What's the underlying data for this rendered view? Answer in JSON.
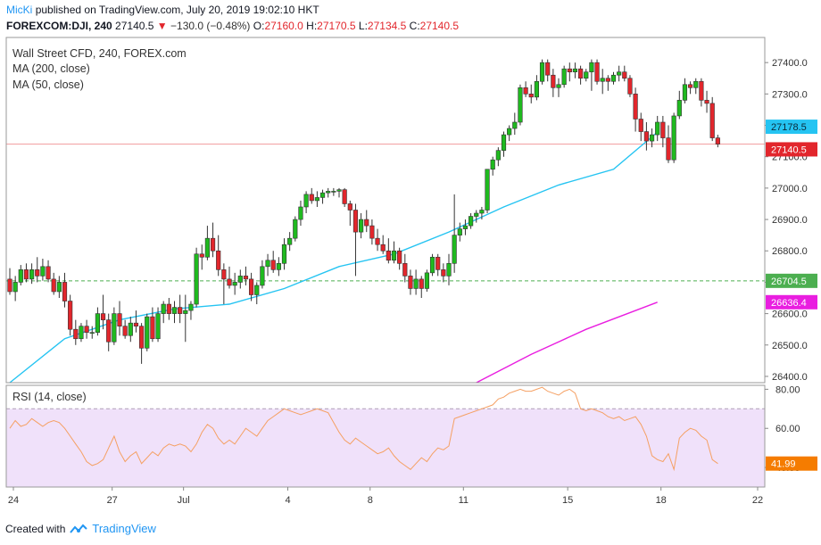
{
  "header": {
    "user": "MicKi",
    "published": "published on TradingView.com, July 20, 2019 19:02:10 HKT",
    "symbol": "FOREXCOM:DJI, 240",
    "last": "27140.5",
    "arrow": "▼",
    "change": "−130.0 (−0.48%)",
    "o_label": "O:",
    "o": "27160.0",
    "h_label": "H:",
    "h": "27170.5",
    "l_label": "L:",
    "l": "27134.5",
    "c_label": "C:",
    "c": "27140.5"
  },
  "legend": {
    "instrument": "Wall Street CFD, 240, FOREX.com",
    "ma200": "MA (200, close)",
    "ma50": "MA (50, close)",
    "rsi": "RSI (14, close)"
  },
  "footer": {
    "created_with": "Created with",
    "brand": "TradingView"
  },
  "colors": {
    "up": "#26a69a",
    "up_fill": "#1fba1f",
    "down": "#e2262c",
    "ma50": "#25c4f2",
    "ma200": "#e91ee0",
    "rsi_line": "#f5a063",
    "rsi_band": "#f0e1fa",
    "support": "#4caf50",
    "price_line": "#e2262c"
  },
  "chart_data": {
    "type": "candlestick",
    "x_ticks": [
      "24",
      "27",
      "Jul",
      "4",
      "8",
      "11",
      "15",
      "18",
      "22"
    ],
    "y_ticks": [
      "27400.0",
      "27300.0",
      "27200.0",
      "27100.0",
      "27000.0",
      "26900.0",
      "26800.0",
      "26700.0",
      "26600.0",
      "26500.0",
      "26400.0"
    ],
    "ylim": [
      26380,
      27480
    ],
    "labels": {
      "ma50_value": "27178.5",
      "last_price": "27140.5",
      "support_level": "26704.5",
      "ma200_value": "26636.4"
    },
    "support_level": 26704.5,
    "last_price": 27140.5,
    "candles": [
      [
        26710,
        26745,
        26660,
        26670
      ],
      [
        26670,
        26720,
        26640,
        26700
      ],
      [
        26700,
        26755,
        26690,
        26740
      ],
      [
        26740,
        26760,
        26700,
        26710
      ],
      [
        26710,
        26760,
        26695,
        26740
      ],
      [
        26740,
        26780,
        26700,
        26720
      ],
      [
        26720,
        26775,
        26705,
        26750
      ],
      [
        26750,
        26770,
        26700,
        26710
      ],
      [
        26710,
        26730,
        26660,
        26670
      ],
      [
        26670,
        26720,
        26650,
        26700
      ],
      [
        26700,
        26730,
        26620,
        26640
      ],
      [
        26640,
        26660,
        26530,
        26550
      ],
      [
        26550,
        26580,
        26500,
        26520
      ],
      [
        26520,
        26570,
        26510,
        26560
      ],
      [
        26560,
        26580,
        26520,
        26540
      ],
      [
        26540,
        26560,
        26520,
        26540
      ],
      [
        26540,
        26620,
        26530,
        26600
      ],
      [
        26600,
        26660,
        26550,
        26580
      ],
      [
        26580,
        26600,
        26480,
        26510
      ],
      [
        26510,
        26620,
        26500,
        26600
      ],
      [
        26600,
        26640,
        26530,
        26560
      ],
      [
        26560,
        26580,
        26520,
        26530
      ],
      [
        26530,
        26590,
        26510,
        26570
      ],
      [
        26570,
        26610,
        26540,
        26560
      ],
      [
        26560,
        26570,
        26440,
        26490
      ],
      [
        26490,
        26600,
        26480,
        26590
      ],
      [
        26590,
        26620,
        26510,
        26520
      ],
      [
        26520,
        26620,
        26510,
        26600
      ],
      [
        26600,
        26640,
        26570,
        26630
      ],
      [
        26630,
        26650,
        26580,
        26600
      ],
      [
        26600,
        26640,
        26570,
        26620
      ],
      [
        26620,
        26660,
        26570,
        26600
      ],
      [
        26600,
        26660,
        26510,
        26610
      ],
      [
        26610,
        26640,
        26580,
        26630
      ],
      [
        26630,
        26810,
        26620,
        26790
      ],
      [
        26790,
        26820,
        26740,
        26780
      ],
      [
        26780,
        26880,
        26770,
        26840
      ],
      [
        26840,
        26890,
        26780,
        26800
      ],
      [
        26800,
        26850,
        26720,
        26740
      ],
      [
        26740,
        26760,
        26630,
        26710
      ],
      [
        26710,
        26750,
        26680,
        26690
      ],
      [
        26690,
        26730,
        26660,
        26700
      ],
      [
        26700,
        26740,
        26680,
        26720
      ],
      [
        26720,
        26750,
        26690,
        26710
      ],
      [
        26710,
        26730,
        26640,
        26660
      ],
      [
        26660,
        26700,
        26630,
        26690
      ],
      [
        26690,
        26770,
        26680,
        26750
      ],
      [
        26750,
        26790,
        26720,
        26770
      ],
      [
        26770,
        26800,
        26730,
        26740
      ],
      [
        26740,
        26780,
        26720,
        26760
      ],
      [
        26760,
        26840,
        26740,
        26820
      ],
      [
        26820,
        26860,
        26800,
        26840
      ],
      [
        26840,
        26910,
        26830,
        26900
      ],
      [
        26900,
        26960,
        26880,
        26940
      ],
      [
        26940,
        26990,
        26920,
        26980
      ],
      [
        26980,
        27000,
        26950,
        26960
      ],
      [
        26960,
        26990,
        26940,
        26970
      ],
      [
        26970,
        26995,
        26950,
        26985
      ],
      [
        26985,
        27000,
        26970,
        26990
      ],
      [
        26990,
        27000,
        26975,
        26990
      ],
      [
        26990,
        27000,
        26970,
        26995
      ],
      [
        26995,
        27000,
        26940,
        26950
      ],
      [
        26950,
        26960,
        26880,
        26930
      ],
      [
        26930,
        26950,
        26720,
        26860
      ],
      [
        26860,
        26920,
        26840,
        26900
      ],
      [
        26900,
        26930,
        26860,
        26880
      ],
      [
        26880,
        26900,
        26820,
        26840
      ],
      [
        26840,
        26870,
        26800,
        26820
      ],
      [
        26820,
        26850,
        26790,
        26800
      ],
      [
        26800,
        26840,
        26760,
        26770
      ],
      [
        26770,
        26830,
        26760,
        26800
      ],
      [
        26800,
        26810,
        26740,
        26760
      ],
      [
        26760,
        26790,
        26700,
        26720
      ],
      [
        26720,
        26740,
        26660,
        26680
      ],
      [
        26680,
        26740,
        26660,
        26710
      ],
      [
        26710,
        26720,
        26650,
        26680
      ],
      [
        26680,
        26740,
        26670,
        26730
      ],
      [
        26730,
        26790,
        26720,
        26780
      ],
      [
        26780,
        26790,
        26720,
        26740
      ],
      [
        26740,
        26760,
        26700,
        26720
      ],
      [
        26720,
        26790,
        26690,
        26760
      ],
      [
        26760,
        26980,
        26730,
        26850
      ],
      [
        26850,
        26890,
        26830,
        26870
      ],
      [
        26870,
        26900,
        26850,
        26880
      ],
      [
        26880,
        26920,
        26870,
        26910
      ],
      [
        26910,
        26930,
        26890,
        26920
      ],
      [
        26920,
        26940,
        26900,
        26930
      ],
      [
        26930,
        27060,
        26920,
        27060
      ],
      [
        27060,
        27100,
        27040,
        27090
      ],
      [
        27090,
        27130,
        27070,
        27120
      ],
      [
        27120,
        27180,
        27100,
        27170
      ],
      [
        27170,
        27200,
        27150,
        27190
      ],
      [
        27190,
        27240,
        27170,
        27210
      ],
      [
        27210,
        27330,
        27200,
        27320
      ],
      [
        27320,
        27340,
        27290,
        27300
      ],
      [
        27300,
        27330,
        27270,
        27290
      ],
      [
        27290,
        27360,
        27280,
        27340
      ],
      [
        27340,
        27410,
        27330,
        27400
      ],
      [
        27400,
        27410,
        27340,
        27360
      ],
      [
        27360,
        27380,
        27290,
        27320
      ],
      [
        27320,
        27350,
        27290,
        27330
      ],
      [
        27330,
        27390,
        27320,
        27380
      ],
      [
        27380,
        27400,
        27340,
        27370
      ],
      [
        27370,
        27400,
        27350,
        27380
      ],
      [
        27380,
        27390,
        27330,
        27350
      ],
      [
        27350,
        27380,
        27340,
        27370
      ],
      [
        27370,
        27410,
        27310,
        27400
      ],
      [
        27400,
        27410,
        27330,
        27340
      ],
      [
        27340,
        27380,
        27300,
        27350
      ],
      [
        27350,
        27360,
        27310,
        27340
      ],
      [
        27340,
        27370,
        27330,
        27360
      ],
      [
        27360,
        27390,
        27340,
        27370
      ],
      [
        27370,
        27390,
        27340,
        27350
      ],
      [
        27350,
        27360,
        27290,
        27300
      ],
      [
        27300,
        27320,
        27180,
        27220
      ],
      [
        27220,
        27240,
        27150,
        27180
      ],
      [
        27180,
        27210,
        27120,
        27150
      ],
      [
        27150,
        27190,
        27130,
        27170
      ],
      [
        27170,
        27230,
        27150,
        27210
      ],
      [
        27210,
        27230,
        27130,
        27160
      ],
      [
        27160,
        27200,
        27080,
        27090
      ],
      [
        27090,
        27240,
        27080,
        27230
      ],
      [
        27230,
        27310,
        27220,
        27280
      ],
      [
        27280,
        27350,
        27270,
        27330
      ],
      [
        27330,
        27340,
        27300,
        27320
      ],
      [
        27320,
        27350,
        27300,
        27340
      ],
      [
        27340,
        27350,
        27260,
        27280
      ],
      [
        27280,
        27310,
        27240,
        27270
      ],
      [
        27270,
        27290,
        27150,
        27160
      ],
      [
        27160,
        27170,
        27130,
        27140
      ]
    ],
    "series": [
      {
        "name": "MA (50, close)",
        "x": [
          0,
          10,
          20,
          30,
          40,
          50,
          60,
          70,
          80,
          90,
          100,
          110,
          118
        ],
        "values": [
          26380,
          26520,
          26580,
          26615,
          26630,
          26680,
          26750,
          26790,
          26860,
          26940,
          27010,
          27060,
          27178.5
        ]
      },
      {
        "name": "MA (200, close)",
        "x": [
          85,
          95,
          105,
          118
        ],
        "values": [
          26380,
          26470,
          26550,
          26636.4
        ]
      }
    ],
    "rsi": {
      "values": [
        60,
        64,
        61,
        62,
        65,
        63,
        61,
        63,
        64,
        63,
        60,
        56,
        52,
        48,
        43,
        41,
        42,
        44,
        50,
        56,
        48,
        43,
        46,
        48,
        42,
        45,
        48,
        46,
        50,
        52,
        51,
        52,
        51,
        48,
        52,
        58,
        62,
        60,
        55,
        52,
        54,
        52,
        56,
        60,
        58,
        56,
        60,
        64,
        66,
        68,
        70,
        69,
        68,
        67,
        68,
        69,
        70,
        69,
        68,
        63,
        58,
        54,
        52,
        55,
        53,
        51,
        49,
        47,
        48,
        50,
        46,
        43,
        41,
        39,
        42,
        45,
        43,
        47,
        50,
        49,
        51,
        65,
        66,
        67,
        68,
        69,
        70,
        71,
        72,
        75,
        76,
        78,
        79,
        80,
        79,
        79,
        80,
        81,
        79,
        78,
        77,
        79,
        80,
        78,
        70,
        69,
        70,
        69,
        68,
        66,
        65,
        66,
        64,
        65,
        66,
        62,
        56,
        46,
        44,
        43,
        47,
        39,
        55,
        58,
        60,
        59,
        56,
        54,
        44,
        42
      ],
      "y_ticks": [
        "80.00",
        "60.00",
        "40.00"
      ],
      "ylim": [
        30,
        82
      ],
      "band": [
        30,
        70
      ],
      "last_value": "41.99"
    }
  }
}
